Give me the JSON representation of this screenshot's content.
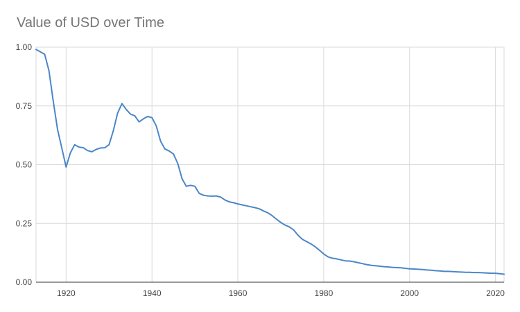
{
  "chart_data": {
    "type": "line",
    "title": "Value of USD over Time",
    "xlabel": "",
    "ylabel": "",
    "xlim": [
      1913,
      2022
    ],
    "ylim": [
      0,
      1
    ],
    "x_ticks": [
      1920,
      1940,
      1960,
      1980,
      2000,
      2020
    ],
    "y_ticks": [
      0,
      0.25,
      0.5,
      0.75,
      1
    ],
    "y_tick_labels": [
      "0.00",
      "0.25",
      "0.50",
      "0.75",
      "1.00"
    ],
    "grid": true,
    "legend": "none",
    "series": [
      {
        "color": "#4a86c8",
        "x": [
          1913,
          1914,
          1915,
          1916,
          1917,
          1918,
          1919,
          1920,
          1921,
          1922,
          1923,
          1924,
          1925,
          1926,
          1927,
          1928,
          1929,
          1930,
          1931,
          1932,
          1933,
          1934,
          1935,
          1936,
          1937,
          1938,
          1939,
          1940,
          1941,
          1942,
          1943,
          1944,
          1945,
          1946,
          1947,
          1948,
          1949,
          1950,
          1951,
          1952,
          1953,
          1954,
          1955,
          1956,
          1957,
          1958,
          1959,
          1960,
          1961,
          1962,
          1963,
          1964,
          1965,
          1966,
          1967,
          1968,
          1969,
          1970,
          1971,
          1972,
          1973,
          1974,
          1975,
          1976,
          1977,
          1978,
          1979,
          1980,
          1981,
          1982,
          1983,
          1984,
          1985,
          1986,
          1987,
          1988,
          1989,
          1990,
          1991,
          1992,
          1993,
          1994,
          1995,
          1996,
          1997,
          1998,
          1999,
          2000,
          2001,
          2002,
          2003,
          2004,
          2005,
          2006,
          2007,
          2008,
          2009,
          2010,
          2011,
          2012,
          2013,
          2014,
          2015,
          2016,
          2017,
          2018,
          2019,
          2020,
          2021,
          2022
        ],
        "y": [
          0.99,
          0.98,
          0.97,
          0.9,
          0.77,
          0.65,
          0.57,
          0.49,
          0.55,
          0.585,
          0.575,
          0.572,
          0.56,
          0.555,
          0.565,
          0.571,
          0.572,
          0.585,
          0.645,
          0.72,
          0.76,
          0.735,
          0.715,
          0.708,
          0.682,
          0.695,
          0.705,
          0.7,
          0.665,
          0.6,
          0.567,
          0.558,
          0.545,
          0.505,
          0.44,
          0.408,
          0.412,
          0.408,
          0.378,
          0.37,
          0.367,
          0.366,
          0.367,
          0.362,
          0.35,
          0.342,
          0.338,
          0.333,
          0.329,
          0.325,
          0.321,
          0.317,
          0.312,
          0.303,
          0.295,
          0.283,
          0.268,
          0.254,
          0.243,
          0.235,
          0.222,
          0.2,
          0.183,
          0.173,
          0.163,
          0.151,
          0.136,
          0.12,
          0.108,
          0.102,
          0.099,
          0.095,
          0.091,
          0.09,
          0.087,
          0.083,
          0.079,
          0.075,
          0.072,
          0.07,
          0.068,
          0.066,
          0.065,
          0.063,
          0.062,
          0.061,
          0.059,
          0.057,
          0.056,
          0.055,
          0.054,
          0.052,
          0.051,
          0.049,
          0.048,
          0.046,
          0.046,
          0.045,
          0.044,
          0.043,
          0.042,
          0.042,
          0.041,
          0.041,
          0.04,
          0.039,
          0.038,
          0.038,
          0.036,
          0.034
        ]
      }
    ]
  }
}
